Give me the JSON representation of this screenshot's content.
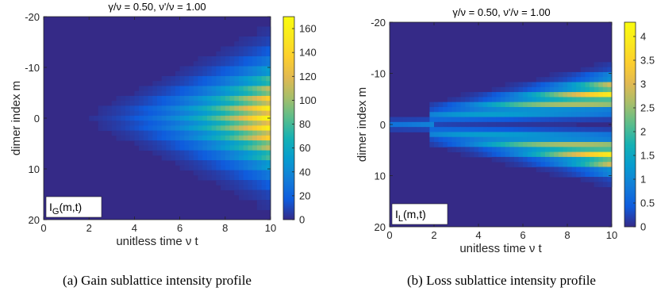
{
  "chart_data": [
    {
      "type": "heatmap",
      "title": "γ/ν = 0.50,  ν'/ν = 1.00",
      "xlabel": "unitless time ν t",
      "ylabel": "dimer index m",
      "xlim": [
        0,
        10
      ],
      "ylim": [
        -20,
        20
      ],
      "y_reversed": true,
      "x_ticks": [
        "0",
        "2",
        "4",
        "6",
        "8",
        "10"
      ],
      "y_ticks": [
        "-20",
        "-10",
        "0",
        "10",
        "20"
      ],
      "colorbar": {
        "min": 0,
        "max": 170,
        "ticks": [
          "0",
          "20",
          "40",
          "60",
          "80",
          "100",
          "120",
          "140",
          "160"
        ]
      },
      "label_main": "I",
      "label_sub": "G",
      "label_rest": "(m,t)",
      "caption": "(a) Gain sublattice intensity profile",
      "peak_value": 165
    },
    {
      "type": "heatmap",
      "title": "γ/ν = 0.50,  ν'/ν = 1.00",
      "xlabel": "unitless time ν t",
      "ylabel": "dimer index m",
      "xlim": [
        0,
        10
      ],
      "ylim": [
        -20,
        20
      ],
      "y_reversed": true,
      "x_ticks": [
        "0",
        "2",
        "4",
        "6",
        "8",
        "10"
      ],
      "y_ticks": [
        "-20",
        "-10",
        "0",
        "10",
        "20"
      ],
      "colorbar": {
        "min": 0,
        "max": 4.3,
        "ticks": [
          "0",
          "0.5",
          "1",
          "1.5",
          "2",
          "2.5",
          "3",
          "3.5",
          "4"
        ]
      },
      "label_main": "I",
      "label_sub": "L",
      "label_rest": "(m,t)",
      "caption": "(b) Loss sublattice intensity profile",
      "peak_value": 4.2
    }
  ]
}
